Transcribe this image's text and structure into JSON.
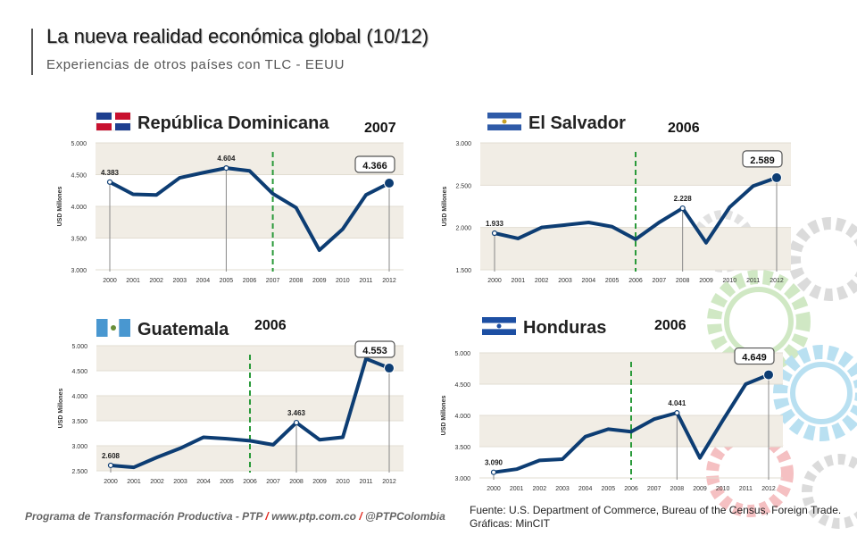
{
  "header": {
    "title": "La nueva realidad económica global (10/12)",
    "subtitle": "Experiencias de otros países con TLC - EEUU"
  },
  "footer": {
    "program": "Programa de Transformación Productiva - PTP",
    "separator": "/",
    "site": "www.ptp.com.co",
    "handle": "@PTPColombia",
    "source": "Fuente: U.S. Department of Commerce, Bureau of the Census, Foreign Trade. Gráficas: MinCIT"
  },
  "colors": {
    "line": "#0d3d73",
    "marker_line": "#2a9a3a",
    "band": "#f1ede5"
  },
  "chart_data": [
    {
      "type": "line",
      "country": "República Dominicana",
      "tlc_year_label": "2007",
      "tlc_year": 2007,
      "ylabel": "USD Millones",
      "ylim": [
        3000,
        5000
      ],
      "yticks": [
        "5.000",
        "4.500",
        "4.000",
        "3.500",
        "3.000"
      ],
      "x": [
        "2000",
        "2001",
        "2002",
        "2003",
        "2004",
        "2005",
        "2006",
        "2007",
        "2008",
        "2009",
        "2010",
        "2011",
        "2012"
      ],
      "values": [
        4383,
        4190,
        4180,
        4450,
        4530,
        4604,
        4560,
        4200,
        3980,
        3310,
        3640,
        4180,
        4366
      ],
      "labels": [
        {
          "x": "2000",
          "text": "4.383",
          "callout": false
        },
        {
          "x": "2005",
          "text": "4.604",
          "callout": false
        },
        {
          "x": "2012",
          "text": "4.366",
          "callout": true
        }
      ]
    },
    {
      "type": "line",
      "country": "El Salvador",
      "tlc_year_label": "2006",
      "tlc_year": 2006,
      "ylabel": "USD Millones",
      "ylim": [
        1500,
        3000
      ],
      "yticks": [
        "3.000",
        "2.500",
        "2.000",
        "1.500"
      ],
      "x": [
        "2000",
        "2001",
        "2002",
        "2003",
        "2004",
        "2005",
        "2006",
        "2007",
        "2008",
        "2009",
        "2010",
        "2011",
        "2012"
      ],
      "values": [
        1933,
        1870,
        2000,
        2030,
        2060,
        2010,
        1860,
        2060,
        2228,
        1820,
        2240,
        2490,
        2589
      ],
      "labels": [
        {
          "x": "2000",
          "text": "1.933",
          "callout": false
        },
        {
          "x": "2008",
          "text": "2.228",
          "callout": false
        },
        {
          "x": "2012",
          "text": "2.589",
          "callout": true
        }
      ]
    },
    {
      "type": "line",
      "country": "Guatemala",
      "tlc_year_label": "2006",
      "tlc_year": 2006,
      "ylabel": "USD Millones",
      "ylim": [
        2500,
        5000
      ],
      "yticks": [
        "5.000",
        "4.500",
        "4.000",
        "3.500",
        "3.000",
        "2.500"
      ],
      "x": [
        "2000",
        "2001",
        "2002",
        "2003",
        "2004",
        "2005",
        "2006",
        "2007",
        "2008",
        "2009",
        "2010",
        "2011",
        "2012"
      ],
      "values": [
        2608,
        2570,
        2770,
        2950,
        3170,
        3140,
        3100,
        3020,
        3463,
        3120,
        3170,
        4740,
        4553
      ],
      "labels": [
        {
          "x": "2000",
          "text": "2.608",
          "callout": false
        },
        {
          "x": "2008",
          "text": "3.463",
          "callout": false
        },
        {
          "x": "2012",
          "text": "4.553",
          "callout": true
        }
      ]
    },
    {
      "type": "line",
      "country": "Honduras",
      "tlc_year_label": "2006",
      "tlc_year": 2006,
      "ylabel": "USD Millones",
      "ylim": [
        3000,
        5000
      ],
      "yticks": [
        "5.000",
        "4.500",
        "4.000",
        "3.500",
        "3.000"
      ],
      "x": [
        "2000",
        "2001",
        "2002",
        "2003",
        "2004",
        "2005",
        "2006",
        "2007",
        "2008",
        "2009",
        "2010",
        "2011",
        "2012"
      ],
      "values": [
        3090,
        3140,
        3280,
        3300,
        3660,
        3780,
        3740,
        3940,
        4041,
        3320,
        3920,
        4500,
        4649
      ],
      "labels": [
        {
          "x": "2000",
          "text": "3.090",
          "callout": false
        },
        {
          "x": "2008",
          "text": "4.041",
          "callout": false
        },
        {
          "x": "2012",
          "text": "4.649",
          "callout": true
        }
      ]
    }
  ]
}
